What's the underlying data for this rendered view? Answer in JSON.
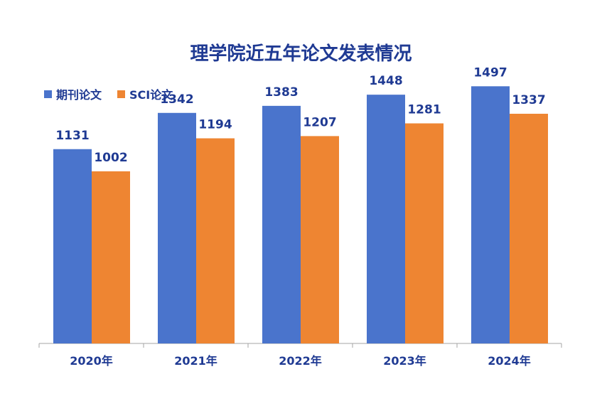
{
  "chart_data": {
    "type": "bar",
    "title": "理学院近五年论文发表情况",
    "categories": [
      "2020年",
      "2021年",
      "2022年",
      "2023年",
      "2024年"
    ],
    "series": [
      {
        "name": "期刊论文",
        "values": [
          1131,
          1342,
          1383,
          1448,
          1497
        ],
        "color": "#4a74cc"
      },
      {
        "name": "SCI论文",
        "values": [
          1002,
          1194,
          1207,
          1281,
          1337
        ],
        "color": "#ee8532"
      }
    ],
    "xlabel": "",
    "ylabel": "",
    "ylim": [
      0,
      1600
    ],
    "grid": false,
    "legend": "top-left",
    "label_color": "#1f3a93"
  }
}
